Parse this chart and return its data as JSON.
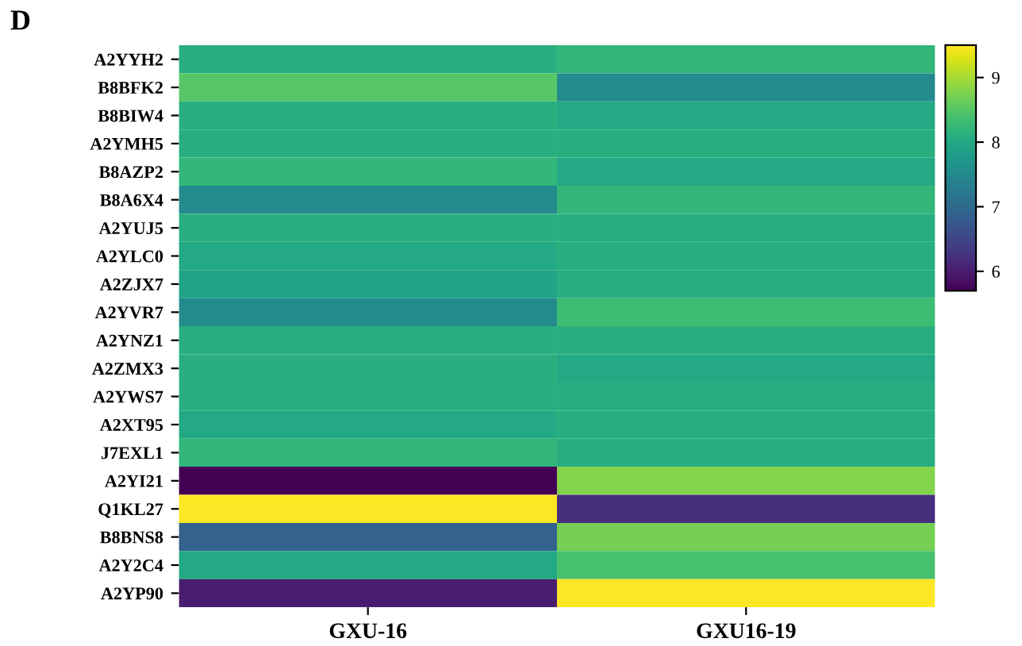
{
  "chart_data": {
    "type": "heatmap",
    "title": "D",
    "categories": [
      "GXU-16",
      "GXU16-19"
    ],
    "y_categories": [
      "A2YYH2",
      "B8BFK2",
      "B8BIW4",
      "A2YMH5",
      "B8AZP2",
      "B8A6X4",
      "A2YUJ5",
      "A2YLC0",
      "A2ZJX7",
      "A2YVR7",
      "A2YNZ1",
      "A2ZMX3",
      "A2YWS7",
      "A2XT95",
      "J7EXL1",
      "A2YI21",
      "Q1KL27",
      "B8BNS8",
      "A2Y2C4",
      "A2YP90"
    ],
    "cells": [
      [
        8.1,
        8.2
      ],
      [
        8.5,
        7.5
      ],
      [
        8.1,
        8.0
      ],
      [
        8.1,
        8.1
      ],
      [
        8.2,
        8.0
      ],
      [
        7.5,
        8.2
      ],
      [
        8.1,
        8.1
      ],
      [
        8.0,
        8.1
      ],
      [
        7.9,
        8.1
      ],
      [
        7.5,
        8.3
      ],
      [
        8.1,
        8.1
      ],
      [
        8.1,
        8.0
      ],
      [
        8.1,
        8.1
      ],
      [
        8.0,
        8.1
      ],
      [
        8.2,
        8.1
      ],
      [
        5.7,
        8.8
      ],
      [
        9.5,
        6.2
      ],
      [
        6.9,
        8.7
      ],
      [
        8.0,
        8.4
      ],
      [
        6.0,
        9.5
      ]
    ],
    "clim": [
      5.7,
      9.5
    ],
    "cticks": [
      6,
      7,
      8,
      9
    ]
  }
}
